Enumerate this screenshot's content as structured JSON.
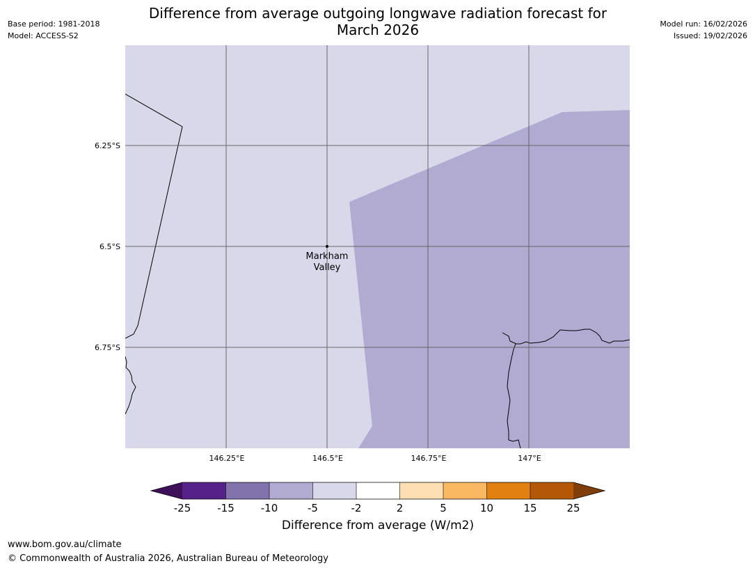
{
  "header": {
    "title_line1": "Difference from average outgoing longwave radiation forecast for",
    "title_line2": "March 2026",
    "base_period": "Base period: 1981-2018",
    "model": "Model: ACCESS-S2",
    "model_run": "Model run: 16/02/2026",
    "issued": "Issued: 19/02/2026"
  },
  "map": {
    "lat_labels": [
      "6.25°S",
      "6.5°S",
      "6.75°S"
    ],
    "lon_labels": [
      "146.25°E",
      "146.5°E",
      "146.75°E",
      "147°E"
    ],
    "place": {
      "name_line1": "Markham",
      "name_line2": "Valley"
    },
    "fill_colors": {
      "background": "#d8d8ea",
      "region": "#b1abd2"
    }
  },
  "colorbar": {
    "label": "Difference from average (W/m2)",
    "ticks": [
      "-25",
      "-15",
      "-10",
      "-5",
      "-2",
      "2",
      "5",
      "10",
      "15",
      "25"
    ],
    "colors": [
      "#3f0f5a",
      "#55228a",
      "#8273ad",
      "#b1abd2",
      "#d8d8ea",
      "#ffffff",
      "#fedfb2",
      "#fbb862",
      "#e08112",
      "#b35807",
      "#803e0a"
    ]
  },
  "footer": {
    "url": "www.bom.gov.au/climate",
    "copyright": "© Commonwealth of Australia 2026, Australian Bureau of Meteorology"
  }
}
